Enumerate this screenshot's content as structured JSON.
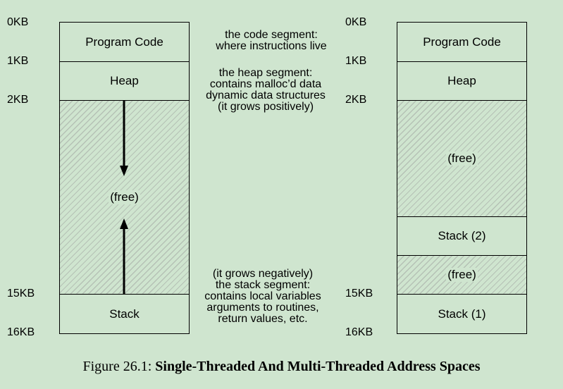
{
  "single_threaded": {
    "address_labels": [
      "0KB",
      "1KB",
      "2KB",
      "15KB",
      "16KB"
    ],
    "segments": {
      "code": "Program Code",
      "heap": "Heap",
      "free": "(free)",
      "stack": "Stack"
    }
  },
  "annotations": {
    "code_segment": [
      "the code segment:",
      "where instructions live"
    ],
    "heap_segment": [
      "the heap segment:",
      "contains malloc’d data",
      "dynamic data structures",
      "(it grows positively)"
    ],
    "stack_segment": [
      "(it grows negatively)",
      "the stack segment:",
      "contains local variables",
      "arguments to routines,",
      "return values, etc."
    ]
  },
  "multi_threaded": {
    "address_labels": [
      "0KB",
      "1KB",
      "2KB",
      "15KB",
      "16KB"
    ],
    "segments": {
      "code": "Program Code",
      "heap": "Heap",
      "free_1": "(free)",
      "stack_2": "Stack (2)",
      "free_2": "(free)",
      "stack_1": "Stack (1)"
    }
  },
  "caption": {
    "prefix": "Figure 26.1:",
    "title": "Single-Threaded And Multi-Threaded Address Spaces"
  }
}
